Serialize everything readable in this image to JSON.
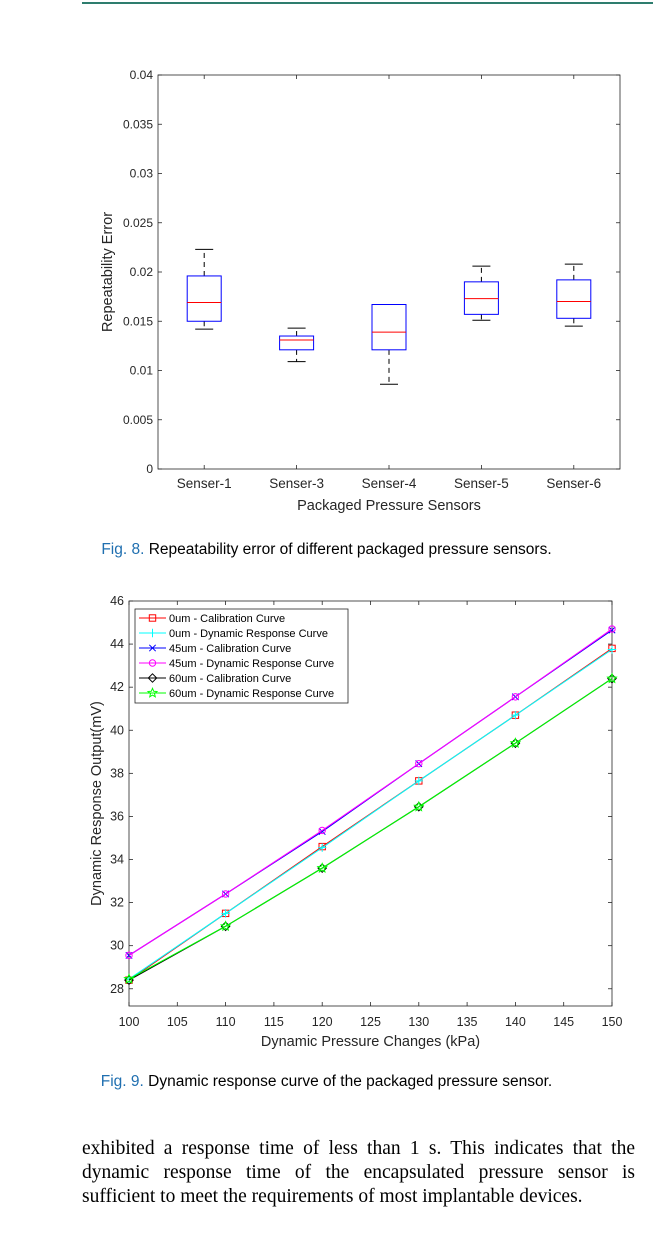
{
  "fig8": {
    "caption_label": "Fig. 8.",
    "caption_text": "Repeatability error of different packaged pressure sensors.",
    "chart_data": {
      "type": "box",
      "title": "",
      "xlabel": "Packaged Pressure Sensors",
      "ylabel": "Repeatability Error",
      "ylim": [
        0,
        0.04
      ],
      "yticks": [
        "0",
        "0.005",
        "0.01",
        "0.015",
        "0.02",
        "0.025",
        "0.03",
        "0.035",
        "0.04"
      ],
      "categories": [
        "Senser-1",
        "Senser-3",
        "Senser-4",
        "Senser-5",
        "Senser-6"
      ],
      "boxes": [
        {
          "min": 0.0142,
          "q1": 0.015,
          "median": 0.0169,
          "q3": 0.0196,
          "max": 0.0223
        },
        {
          "min": 0.0109,
          "q1": 0.0121,
          "median": 0.0131,
          "q3": 0.0135,
          "max": 0.0143
        },
        {
          "min": 0.0086,
          "q1": 0.0121,
          "median": 0.0139,
          "q3": 0.0167,
          "max": 0.0167
        },
        {
          "min": 0.0151,
          "q1": 0.0157,
          "median": 0.0173,
          "q3": 0.019,
          "max": 0.0206
        },
        {
          "min": 0.0145,
          "q1": 0.0153,
          "median": 0.017,
          "q3": 0.0192,
          "max": 0.0208
        }
      ],
      "box_color": "#0000ff",
      "median_color": "#ff0000"
    }
  },
  "fig9": {
    "caption_label": "Fig. 9.",
    "caption_text": "Dynamic response curve of the packaged pressure sensor.",
    "chart_data": {
      "type": "line",
      "title": "",
      "xlabel": "Dynamic Pressure Changes (kPa)",
      "ylabel": "Dynamic Response Output(mV)",
      "xlim": [
        100,
        150
      ],
      "ylim": [
        27.2,
        46
      ],
      "xticks": [
        "100",
        "105",
        "110",
        "115",
        "120",
        "125",
        "130",
        "135",
        "140",
        "145",
        "150"
      ],
      "yticks": [
        "28",
        "30",
        "32",
        "34",
        "36",
        "38",
        "40",
        "42",
        "44",
        "46"
      ],
      "x": [
        100,
        110,
        120,
        130,
        140,
        150
      ],
      "legend_position": "top-left",
      "series": [
        {
          "name": "0um - Calibration Curve",
          "values": [
            28.4,
            31.5,
            34.6,
            37.65,
            40.7,
            43.8
          ],
          "color": "#ff0000",
          "marker": "square"
        },
        {
          "name": "0um - Dynamic Response Curve",
          "values": [
            28.45,
            31.5,
            34.55,
            37.65,
            40.7,
            43.75
          ],
          "color": "#00ffff",
          "marker": "plus"
        },
        {
          "name": "45um - Calibration Curve",
          "values": [
            29.55,
            32.4,
            35.3,
            38.45,
            41.55,
            44.65
          ],
          "color": "#0000ff",
          "marker": "x"
        },
        {
          "name": "45um - Dynamic Response Curve",
          "values": [
            29.55,
            32.4,
            35.35,
            38.45,
            41.55,
            44.7
          ],
          "color": "#ff00ff",
          "marker": "circle"
        },
        {
          "name": "60um - Calibration Curve",
          "values": [
            28.4,
            30.9,
            33.6,
            36.45,
            39.4,
            42.4
          ],
          "color": "#000000",
          "marker": "diamond"
        },
        {
          "name": "60um - Dynamic Response Curve",
          "values": [
            28.45,
            30.9,
            33.6,
            36.45,
            39.4,
            42.4
          ],
          "color": "#00ff00",
          "marker": "star"
        }
      ]
    }
  },
  "body_text": "exhibited a response time of less than 1 s. This indicates that the dynamic response time of the encapsulated pressure sensor is sufficient to meet the requirements of most implantable devices."
}
